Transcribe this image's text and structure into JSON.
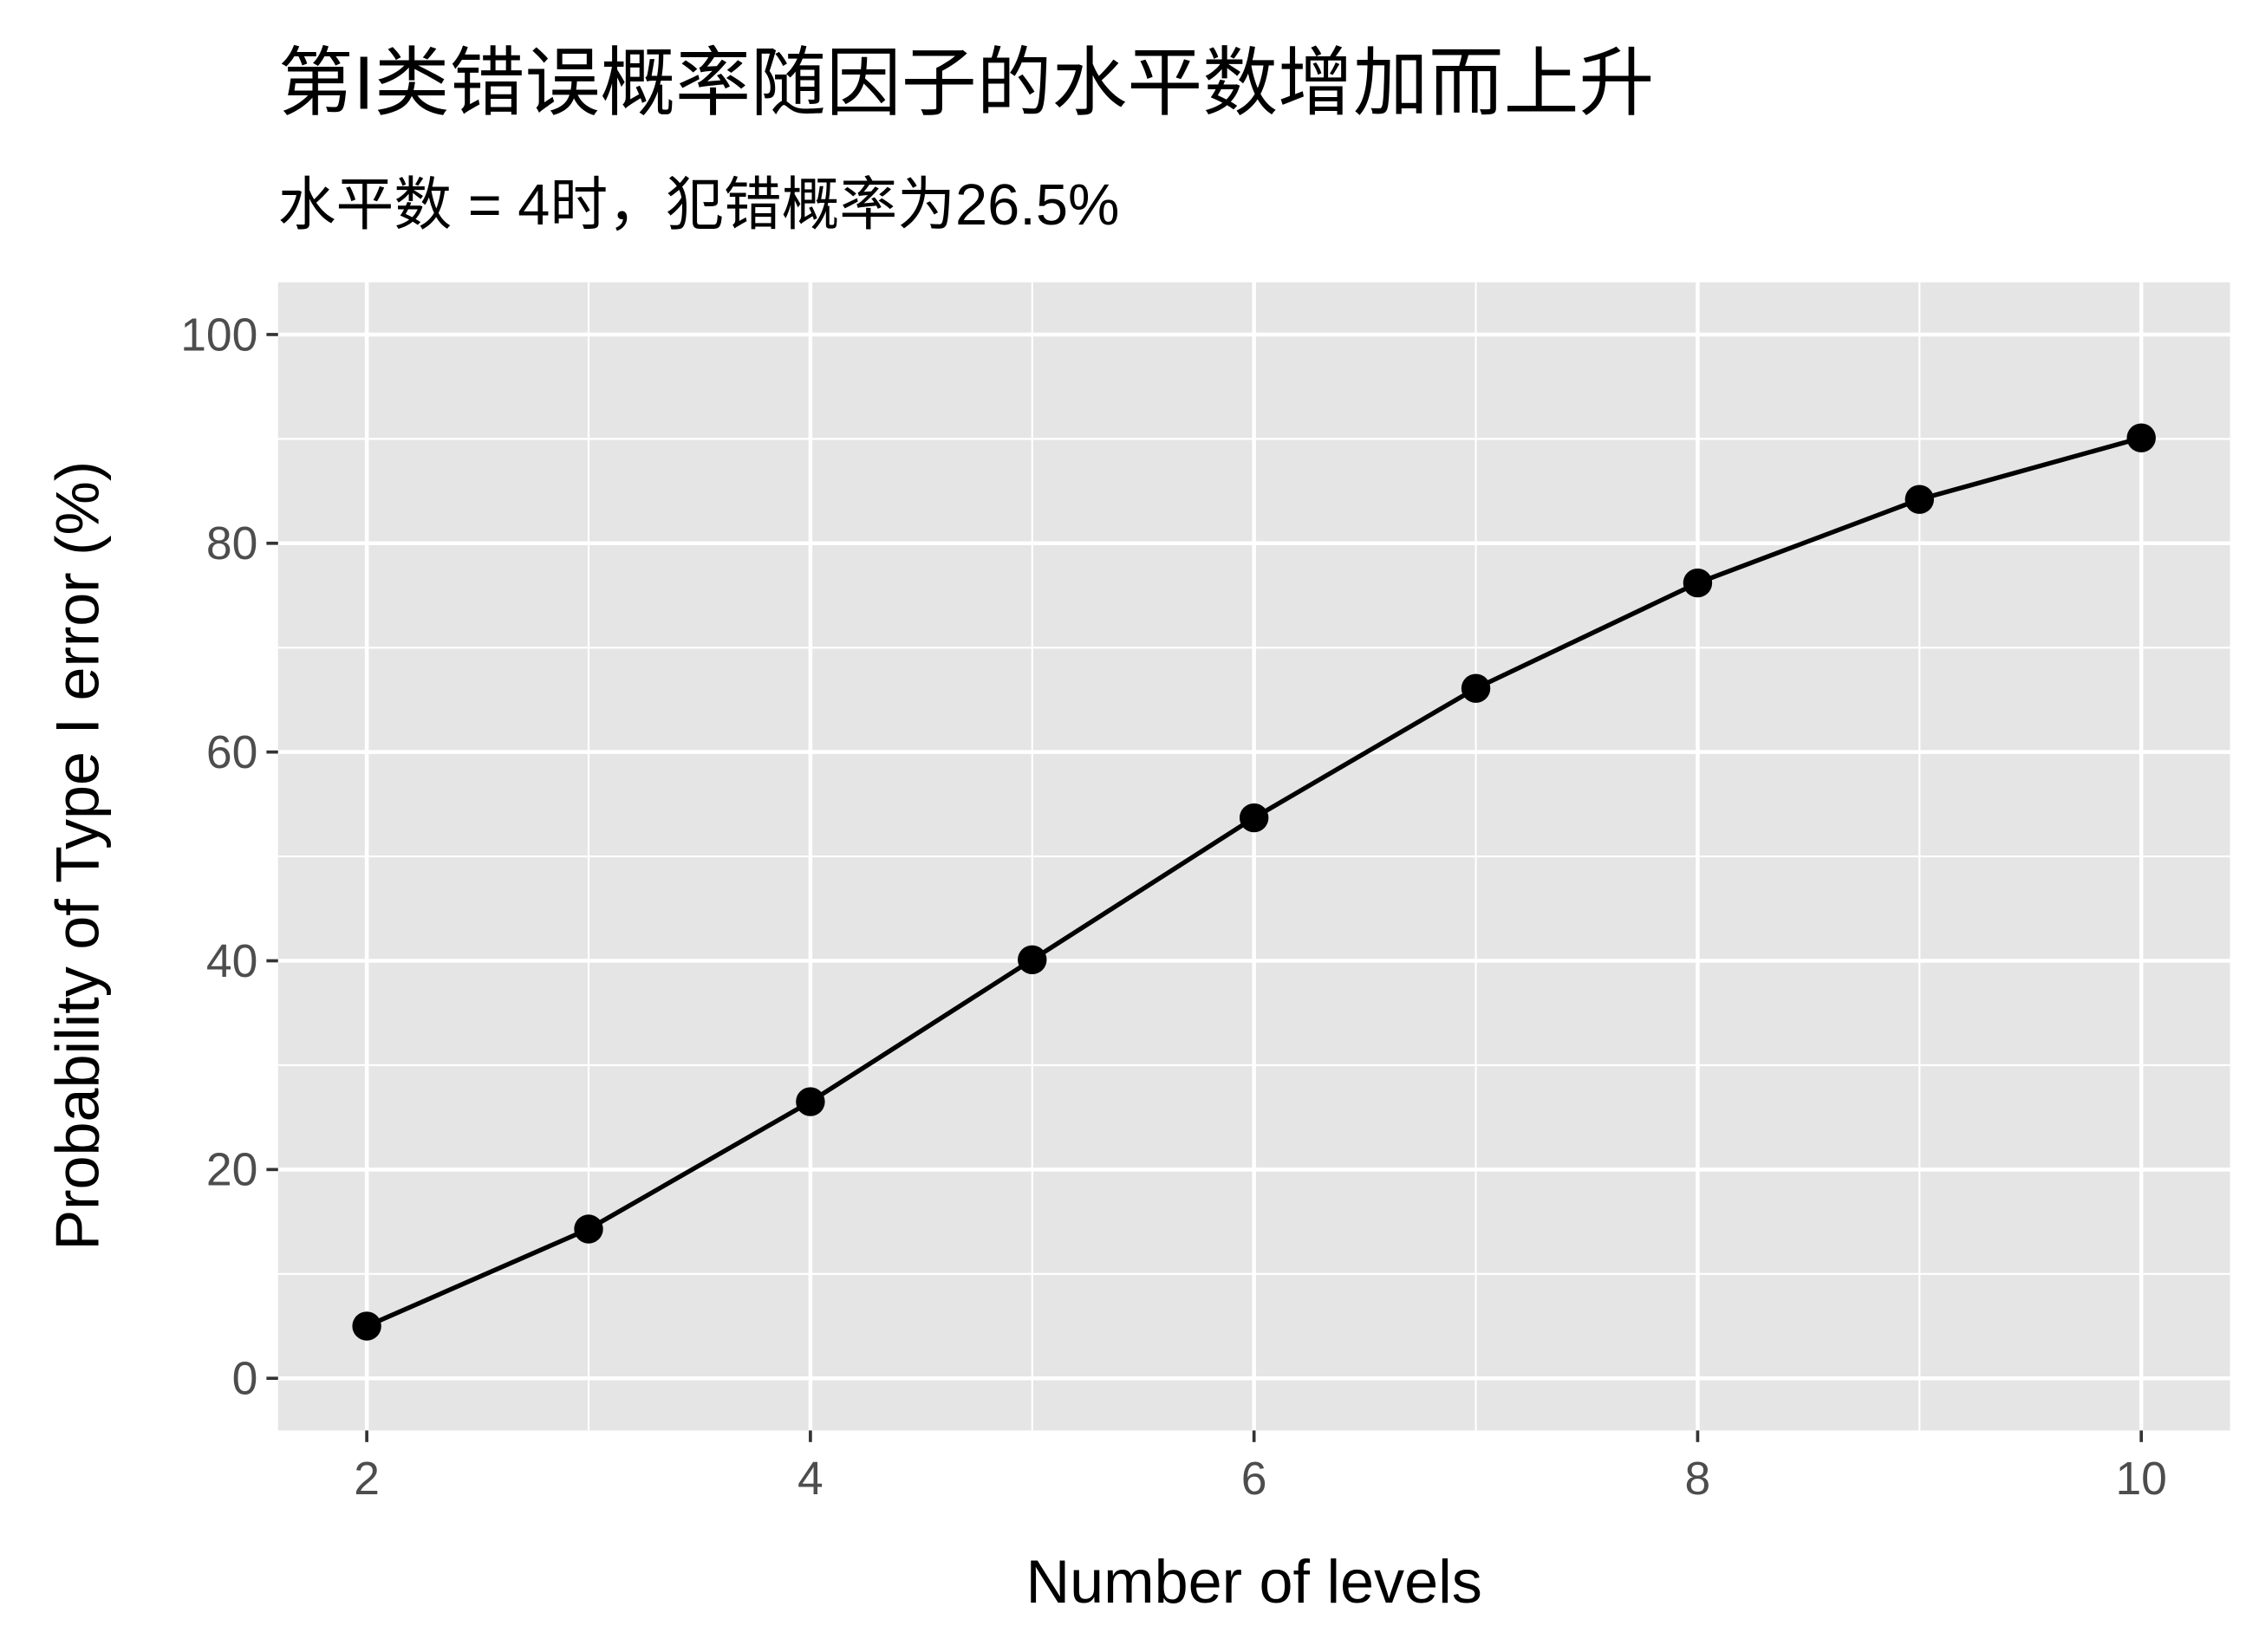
{
  "chart_data": {
    "type": "line",
    "title": "第I类错误概率随因子的水平数增加而上升",
    "subtitle": "水平数 = 4时，犯错概率为26.5%",
    "x_label": "Number of levels",
    "y_label": "Probability of Type I error (%)",
    "x": [
      2,
      3,
      4,
      5,
      6,
      7,
      8,
      9,
      10
    ],
    "series": [
      {
        "color": "#000000",
        "values": [
          5,
          14.3,
          26.5,
          40.1,
          53.7,
          66.1,
          76.2,
          84.2,
          90.1
        ]
      }
    ],
    "xlim": [
      1.6,
      10.4
    ],
    "ylim": [
      -5,
      105
    ],
    "xticks": [
      2,
      4,
      6,
      8,
      10
    ],
    "yticks": [
      0,
      20,
      40,
      60,
      80,
      100
    ],
    "grid": true
  }
}
